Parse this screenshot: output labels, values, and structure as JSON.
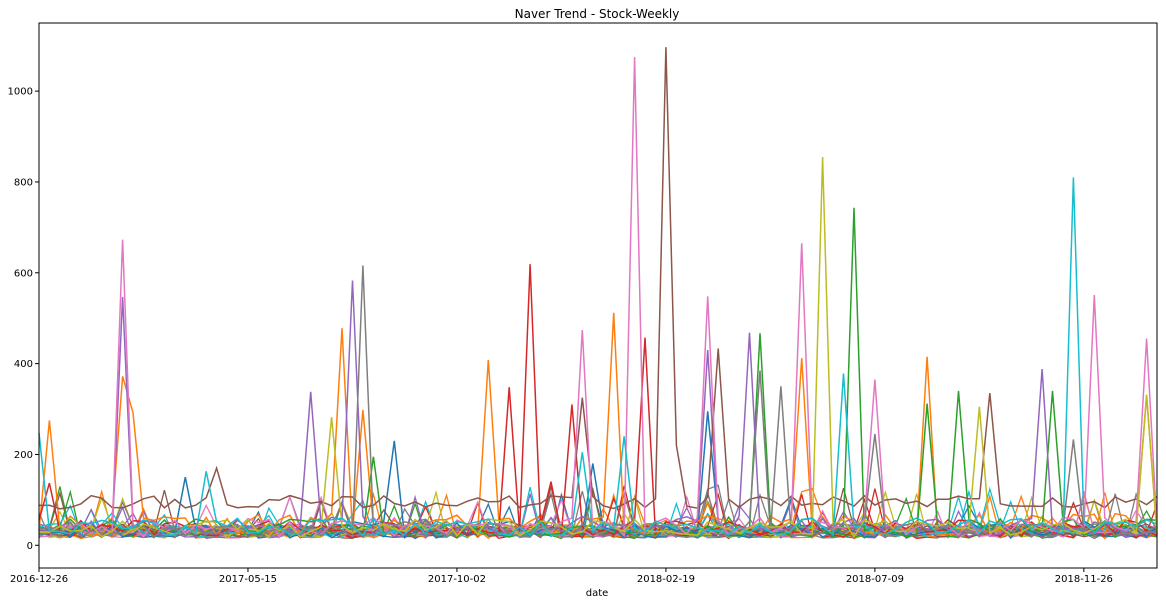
{
  "chart_data": {
    "type": "line",
    "title": "Naver Trend - Stock-Weekly",
    "xlabel": "date",
    "ylabel": "",
    "x_start": "2016-12-26",
    "x_end": "2019-01-14",
    "xlim": [
      "2016-12-26",
      "2019-01-14"
    ],
    "ylim": [
      -50,
      1150
    ],
    "x_ticks": [
      "2016-12-26",
      "2017-05-15",
      "2017-10-02",
      "2018-02-19",
      "2018-07-09",
      "2018-11-26"
    ],
    "y_ticks": [
      0,
      200,
      400,
      600,
      800,
      1000
    ],
    "grid": false,
    "legend": "none",
    "colors": [
      "#1f77b4",
      "#ff7f0e",
      "#2ca02c",
      "#d62728",
      "#9467bd",
      "#8c564b",
      "#e377c2",
      "#7f7f7f",
      "#bcbd22",
      "#17becf"
    ],
    "series": [
      {
        "color": "#1f77b4",
        "base": 35,
        "noise": 20,
        "seed": 11,
        "spikes": [
          {
            "date": "2017-08-21",
            "value": 230
          },
          {
            "date": "2018-03-19",
            "value": 295
          },
          {
            "date": "2018-01-01",
            "value": 180
          },
          {
            "date": "2017-04-03",
            "value": 150
          }
        ]
      },
      {
        "color": "#ff7f0e",
        "base": 45,
        "noise": 25,
        "seed": 22,
        "spikes": [
          {
            "date": "2017-01-02",
            "value": 275
          },
          {
            "date": "2017-02-20",
            "value": 372
          },
          {
            "date": "2017-02-27",
            "value": 292
          },
          {
            "date": "2017-07-17",
            "value": 478
          },
          {
            "date": "2017-07-31",
            "value": 298
          },
          {
            "date": "2017-10-23",
            "value": 408
          },
          {
            "date": "2018-01-15",
            "value": 512
          },
          {
            "date": "2018-05-21",
            "value": 412
          },
          {
            "date": "2018-08-13",
            "value": 415
          },
          {
            "date": "2019-01-07",
            "value": 330
          }
        ]
      },
      {
        "color": "#2ca02c",
        "base": 40,
        "noise": 22,
        "seed": 33,
        "spikes": [
          {
            "date": "2017-08-07",
            "value": 195
          },
          {
            "date": "2018-04-23",
            "value": 467
          },
          {
            "date": "2018-06-25",
            "value": 743
          },
          {
            "date": "2018-08-13",
            "value": 312
          },
          {
            "date": "2018-09-03",
            "value": 340
          },
          {
            "date": "2018-11-05",
            "value": 340
          }
        ]
      },
      {
        "color": "#d62728",
        "base": 38,
        "noise": 18,
        "seed": 44,
        "spikes": [
          {
            "date": "2016-12-26",
            "value": 55
          },
          {
            "date": "2017-01-02",
            "value": 137
          },
          {
            "date": "2017-11-06",
            "value": 348
          },
          {
            "date": "2017-11-20",
            "value": 619
          },
          {
            "date": "2017-12-18",
            "value": 310
          },
          {
            "date": "2018-02-05",
            "value": 457
          },
          {
            "date": "2017-12-04",
            "value": 140
          }
        ]
      },
      {
        "color": "#9467bd",
        "base": 42,
        "noise": 22,
        "seed": 55,
        "spikes": [
          {
            "date": "2017-02-20",
            "value": 547
          },
          {
            "date": "2017-06-26",
            "value": 338
          },
          {
            "date": "2017-07-24",
            "value": 583
          },
          {
            "date": "2018-03-19",
            "value": 430
          },
          {
            "date": "2018-04-16",
            "value": 468
          },
          {
            "date": "2018-10-29",
            "value": 388
          }
        ]
      },
      {
        "color": "#8c564b",
        "base": 95,
        "noise": 15,
        "seed": 66,
        "spikes": [
          {
            "date": "2017-04-24",
            "value": 170
          },
          {
            "date": "2018-02-19",
            "value": 1097
          },
          {
            "date": "2018-02-26",
            "value": 220
          },
          {
            "date": "2018-03-26",
            "value": 433
          },
          {
            "date": "2018-09-24",
            "value": 335
          },
          {
            "date": "2017-12-25",
            "value": 325
          }
        ]
      },
      {
        "color": "#e377c2",
        "base": 40,
        "noise": 22,
        "seed": 77,
        "spikes": [
          {
            "date": "2017-02-20",
            "value": 673
          },
          {
            "date": "2017-12-25",
            "value": 474
          },
          {
            "date": "2018-01-29",
            "value": 1075
          },
          {
            "date": "2018-03-19",
            "value": 548
          },
          {
            "date": "2018-05-21",
            "value": 665
          },
          {
            "date": "2018-07-09",
            "value": 365
          },
          {
            "date": "2018-12-03",
            "value": 551
          },
          {
            "date": "2019-01-07",
            "value": 455
          }
        ]
      },
      {
        "color": "#7f7f7f",
        "base": 35,
        "noise": 18,
        "seed": 88,
        "spikes": [
          {
            "date": "2017-07-31",
            "value": 616
          },
          {
            "date": "2018-04-23",
            "value": 385
          },
          {
            "date": "2018-05-07",
            "value": 350
          },
          {
            "date": "2018-07-09",
            "value": 245
          },
          {
            "date": "2018-11-19",
            "value": 233
          }
        ]
      },
      {
        "color": "#bcbd22",
        "base": 38,
        "noise": 20,
        "seed": 99,
        "spikes": [
          {
            "date": "2017-07-10",
            "value": 282
          },
          {
            "date": "2018-06-04",
            "value": 855
          },
          {
            "date": "2018-09-17",
            "value": 305
          },
          {
            "date": "2019-01-07",
            "value": 332
          }
        ]
      },
      {
        "color": "#17becf",
        "base": 40,
        "noise": 20,
        "seed": 110,
        "spikes": [
          {
            "date": "2016-12-26",
            "value": 248
          },
          {
            "date": "2017-04-17",
            "value": 163
          },
          {
            "date": "2017-12-25",
            "value": 205
          },
          {
            "date": "2018-01-22",
            "value": 240
          },
          {
            "date": "2018-06-18",
            "value": 378
          },
          {
            "date": "2018-11-19",
            "value": 810
          }
        ]
      }
    ],
    "background_series_count": 30
  }
}
